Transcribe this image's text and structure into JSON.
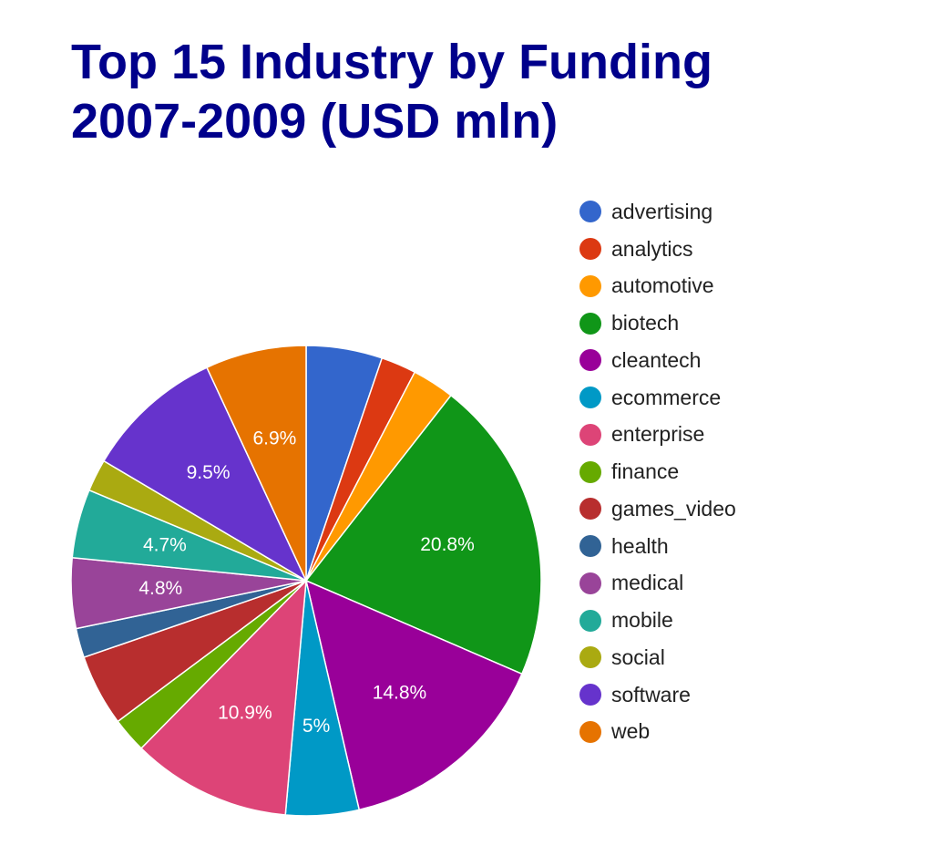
{
  "chart_data": {
    "type": "pie",
    "title_lines": [
      "Top 15 Industry by Funding",
      "2007-2009 (USD mln)"
    ],
    "legend_position": "right",
    "slices": [
      {
        "name": "advertising",
        "value": 5.2,
        "color": "#3366cc",
        "label": ""
      },
      {
        "name": "analytics",
        "value": 2.4,
        "color": "#dc3912",
        "label": ""
      },
      {
        "name": "automotive",
        "value": 2.9,
        "color": "#ff9900",
        "label": ""
      },
      {
        "name": "biotech",
        "value": 20.8,
        "color": "#109618",
        "label": "20.8%"
      },
      {
        "name": "cleantech",
        "value": 14.8,
        "color": "#990099",
        "label": "14.8%"
      },
      {
        "name": "ecommerce",
        "value": 5.0,
        "color": "#0099c6",
        "label": "5%"
      },
      {
        "name": "enterprise",
        "value": 10.9,
        "color": "#dd4477",
        "label": "10.9%"
      },
      {
        "name": "finance",
        "value": 2.4,
        "color": "#66aa00",
        "label": ""
      },
      {
        "name": "games_video",
        "value": 4.9,
        "color": "#b82e2e",
        "label": ""
      },
      {
        "name": "health",
        "value": 2.0,
        "color": "#316395",
        "label": ""
      },
      {
        "name": "medical",
        "value": 4.8,
        "color": "#994499",
        "label": "4.8%"
      },
      {
        "name": "mobile",
        "value": 4.7,
        "color": "#22aa99",
        "label": "4.7%"
      },
      {
        "name": "social",
        "value": 2.2,
        "color": "#aaaa11",
        "label": ""
      },
      {
        "name": "software",
        "value": 9.5,
        "color": "#6633cc",
        "label": "9.5%"
      },
      {
        "name": "web",
        "value": 6.9,
        "color": "#e67300",
        "label": "6.9%"
      }
    ]
  }
}
